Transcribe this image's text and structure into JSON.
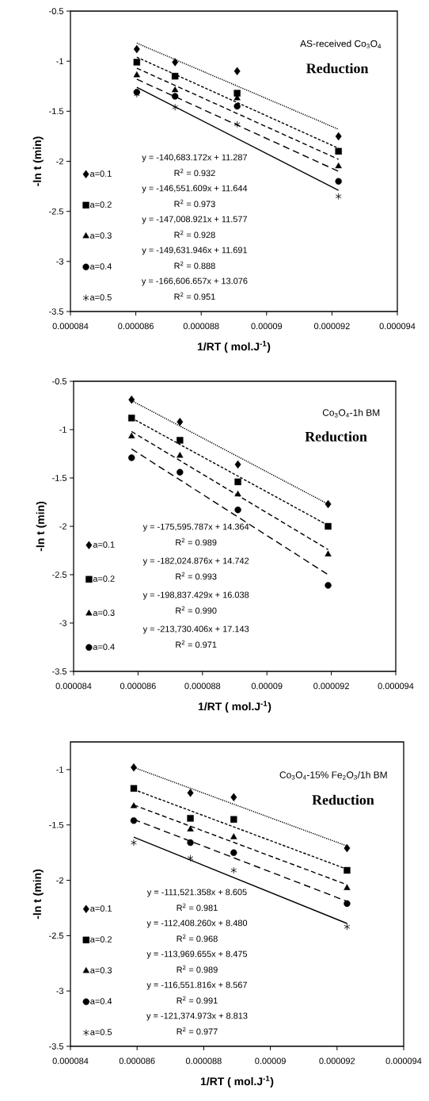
{
  "chart_data": [
    {
      "type": "scatter",
      "xlabel": "1/RT ( mol.J$^{-1}$)",
      "ylabel": "-ln t (min)",
      "xlim": [
        8.4e-05,
        9.4e-05
      ],
      "xticks": [
        {
          "value": 8.4e-05,
          "label": "0.000084"
        },
        {
          "value": 8.6e-05,
          "label": "0.000086"
        },
        {
          "value": 8.8e-05,
          "label": "0.000088"
        },
        {
          "value": 9e-05,
          "label": "0.00009"
        },
        {
          "value": 9.2e-05,
          "label": "0.000092"
        },
        {
          "value": 9.4e-05,
          "label": "0.000094"
        }
      ],
      "ylim": [
        -3.5,
        -0.5
      ],
      "yticks": [
        -0.5,
        -1,
        -1.5,
        -2,
        -2.5,
        -3,
        -3.5
      ],
      "legend": "bottom left",
      "annotations": [
        "AS-received Co$_{3}$O$_{4}$",
        "**Reduction**",
        "y = -140,683.172x + 11.287",
        "R$^{2}$ = 0.932",
        "y = -146,551.609x + 11.644",
        "R$^{2}$ = 0.973",
        "y = -147,008.921x + 11.577",
        "R$^{2}$ = 0.928",
        "y = -149,631.946x + 11.691",
        "R$^{2}$ = 0.888",
        "y = -166,606.657x + 13.076",
        "R$^{2}$ = 0.951"
      ],
      "series": [
        {
          "name": "a=0.1",
          "marker": "diamond",
          "color": "#000000",
          "x": [
            8.603e-05,
            8.72e-05,
            8.91e-05,
            9.22e-05
          ],
          "values": [
            -0.88,
            -1.01,
            -1.1,
            -1.75
          ]
        },
        {
          "name": "a=0.2",
          "marker": "square",
          "color": "#000000",
          "x": [
            8.603e-05,
            8.72e-05,
            8.91e-05,
            9.22e-05
          ],
          "values": [
            -1.01,
            -1.15,
            -1.32,
            -1.9
          ]
        },
        {
          "name": "a=0.3",
          "marker": "triangle",
          "color": "#000000",
          "x": [
            8.603e-05,
            8.72e-05,
            8.91e-05,
            9.22e-05
          ],
          "values": [
            -1.14,
            -1.29,
            -1.37,
            -2.05
          ]
        },
        {
          "name": "a=0.4",
          "marker": "circle",
          "color": "#000000",
          "x": [
            8.603e-05,
            8.72e-05,
            8.91e-05,
            9.22e-05
          ],
          "values": [
            -1.31,
            -1.35,
            -1.45,
            -2.2
          ]
        },
        {
          "name": "a=0.5",
          "marker": "cross",
          "color": "#000000",
          "x": [
            8.603e-05,
            8.72e-05,
            8.91e-05,
            9.22e-05
          ],
          "values": [
            -1.33,
            -1.46,
            -1.63,
            -2.35
          ]
        },
        {
          "type": "line",
          "marker": "none",
          "line_style": "dotted",
          "color": "#000000",
          "x": [
            8.603e-05,
            9.22e-05
          ],
          "values": [
            -0.82,
            -1.68
          ]
        },
        {
          "type": "line",
          "marker": "none",
          "line_style": "dashed",
          "color": "#000000",
          "x": [
            8.603e-05,
            9.22e-05
          ],
          "values": [
            -0.96,
            -1.87
          ]
        },
        {
          "type": "line",
          "marker": "none",
          "line_style": "dashed",
          "color": "#000000",
          "x": [
            8.603e-05,
            9.22e-05
          ],
          "values": [
            -1.07,
            -1.98
          ]
        },
        {
          "type": "line",
          "marker": "none",
          "line_style": "dashed",
          "color": "#000000",
          "x": [
            8.603e-05,
            9.22e-05
          ],
          "values": [
            -1.18,
            -2.1
          ]
        },
        {
          "type": "line",
          "marker": "none",
          "line_style": "solid",
          "color": "#000000",
          "x": [
            8.603e-05,
            9.22e-05
          ],
          "values": [
            -1.26,
            -2.29
          ]
        }
      ]
    },
    {
      "type": "scatter",
      "xlabel": "1/RT ( mol.J$^{-1}$)",
      "ylabel": "-ln t (min)",
      "xlim": [
        8.4e-05,
        9.4e-05
      ],
      "xticks": [
        {
          "value": 8.4e-05,
          "label": "0.000084"
        },
        {
          "value": 8.6e-05,
          "label": "0.000086"
        },
        {
          "value": 8.8e-05,
          "label": "0.000088"
        },
        {
          "value": 9e-05,
          "label": "0.00009"
        },
        {
          "value": 9.2e-05,
          "label": "0.000092"
        },
        {
          "value": 9.4e-05,
          "label": "0.000094"
        }
      ],
      "ylim": [
        -3.5,
        -0.5
      ],
      "yticks": [
        -0.5,
        -1,
        -1.5,
        -2,
        -2.5,
        -3,
        -3.5
      ],
      "legend": "bottom left",
      "annotations": [
        "Co$_{3}$O$_{4}$-1h BM",
        "**Reduction**",
        "y = -175,595.787x + 14.364",
        "R$^{2}$ = 0.989",
        "y = -182,024.876x + 14.742",
        "R$^{2}$ = 0.993",
        "y = -198,837.429x + 16.038",
        "R$^{2}$ = 0.990",
        "y = -213,730.406x + 17.143",
        "R$^{2}$ = 0.971"
      ],
      "series": [
        {
          "name": "a=0.1",
          "marker": "diamond",
          "color": "#000000",
          "x": [
            8.58e-05,
            8.73e-05,
            8.91e-05,
            9.19e-05
          ],
          "values": [
            -0.69,
            -0.92,
            -1.36,
            -1.77
          ]
        },
        {
          "name": "a=0.2",
          "marker": "square",
          "color": "#000000",
          "x": [
            8.58e-05,
            8.73e-05,
            8.91e-05,
            9.19e-05
          ],
          "values": [
            -0.88,
            -1.11,
            -1.54,
            -2.0
          ]
        },
        {
          "name": "a=0.3",
          "marker": "triangle",
          "color": "#000000",
          "x": [
            8.58e-05,
            8.73e-05,
            8.91e-05,
            9.19e-05
          ],
          "values": [
            -1.07,
            -1.27,
            -1.67,
            -2.29
          ]
        },
        {
          "name": "a=0.4",
          "marker": "circle",
          "color": "#000000",
          "x": [
            8.58e-05,
            8.73e-05,
            8.91e-05,
            9.19e-05
          ],
          "values": [
            -1.29,
            -1.44,
            -1.83,
            -2.61
          ]
        },
        {
          "type": "line",
          "marker": "none",
          "line_style": "dotted",
          "color": "#000000",
          "x": [
            8.58e-05,
            9.19e-05
          ],
          "values": [
            -0.7,
            -1.77
          ]
        },
        {
          "type": "line",
          "marker": "none",
          "line_style": "dashed",
          "color": "#000000",
          "x": [
            8.58e-05,
            9.19e-05
          ],
          "values": [
            -0.88,
            -1.99
          ]
        },
        {
          "type": "line",
          "marker": "none",
          "line_style": "dashed",
          "color": "#000000",
          "x": [
            8.58e-05,
            9.19e-05
          ],
          "values": [
            -1.02,
            -2.24
          ]
        },
        {
          "type": "line",
          "marker": "none",
          "line_style": "dashed",
          "color": "#000000",
          "x": [
            8.58e-05,
            9.19e-05
          ],
          "values": [
            -1.2,
            -2.5
          ]
        }
      ]
    },
    {
      "type": "scatter",
      "xlabel": "1/RT ( mol.J$^{-1}$)",
      "ylabel": "-ln t (min)",
      "xlim": [
        8.4e-05,
        9.4e-05
      ],
      "xticks": [
        {
          "value": 8.4e-05,
          "label": "0.000084"
        },
        {
          "value": 8.6e-05,
          "label": "0.000086"
        },
        {
          "value": 8.8e-05,
          "label": "0.000088"
        },
        {
          "value": 9e-05,
          "label": "0.00009"
        },
        {
          "value": 9.2e-05,
          "label": "0.000092"
        },
        {
          "value": 9.4e-05,
          "label": "0.000094"
        }
      ],
      "ylim": [
        -3.5,
        -0.75
      ],
      "yticks": [
        -1,
        -1.5,
        -2,
        -2.5,
        -3,
        -3.5
      ],
      "legend": "bottom left",
      "annotations": [
        "Co$_{3}$O$_{4}$-15% Fe$_{2}$O$_{3}$/1h BM",
        "**Reduction**",
        "y = -111,521.358x + 8.605",
        "R$^{2}$ = 0.981",
        "y = -112,408.260x + 8.480",
        "R$^{2}$ = 0.968",
        "y = -113,969.655x + 8.475",
        "R$^{2}$ = 0.989",
        "y = -116,551.816x + 8.567",
        "R$^{2}$ = 0.991",
        "y = -121,374.973x + 8.813",
        "R$^{2}$ = 0.977"
      ],
      "series": [
        {
          "name": "a=0.1",
          "marker": "diamond",
          "color": "#000000",
          "x": [
            8.59e-05,
            8.76e-05,
            8.89e-05,
            9.23e-05
          ],
          "values": [
            -0.98,
            -1.21,
            -1.25,
            -1.71
          ]
        },
        {
          "name": "a=0.2",
          "marker": "square",
          "color": "#000000",
          "x": [
            8.59e-05,
            8.76e-05,
            8.89e-05,
            9.23e-05
          ],
          "values": [
            -1.17,
            -1.44,
            -1.45,
            -1.91
          ]
        },
        {
          "name": "a=0.3",
          "marker": "triangle",
          "color": "#000000",
          "x": [
            8.59e-05,
            8.76e-05,
            8.89e-05,
            9.23e-05
          ],
          "values": [
            -1.33,
            -1.54,
            -1.61,
            -2.07
          ]
        },
        {
          "name": "a=0.4",
          "marker": "circle",
          "color": "#000000",
          "x": [
            8.59e-05,
            8.76e-05,
            8.89e-05,
            9.23e-05
          ],
          "values": [
            -1.46,
            -1.66,
            -1.75,
            -2.21
          ]
        },
        {
          "name": "a=0.5",
          "marker": "cross",
          "color": "#000000",
          "x": [
            8.59e-05,
            8.76e-05,
            8.89e-05,
            9.23e-05
          ],
          "values": [
            -1.66,
            -1.8,
            -1.91,
            -2.42
          ]
        },
        {
          "type": "line",
          "marker": "none",
          "line_style": "dotted",
          "color": "#000000",
          "x": [
            8.59e-05,
            9.23e-05
          ],
          "values": [
            -0.98,
            -1.69
          ]
        },
        {
          "type": "line",
          "marker": "none",
          "line_style": "dashed",
          "color": "#000000",
          "x": [
            8.59e-05,
            9.23e-05
          ],
          "values": [
            -1.18,
            -1.9
          ]
        },
        {
          "type": "line",
          "marker": "none",
          "line_style": "dashed",
          "color": "#000000",
          "x": [
            8.59e-05,
            9.23e-05
          ],
          "values": [
            -1.32,
            -2.04
          ]
        },
        {
          "type": "line",
          "marker": "none",
          "line_style": "dashed",
          "color": "#000000",
          "x": [
            8.59e-05,
            9.23e-05
          ],
          "values": [
            -1.45,
            -2.19
          ]
        },
        {
          "type": "line",
          "marker": "none",
          "line_style": "solid",
          "color": "#000000",
          "x": [
            8.59e-05,
            9.23e-05
          ],
          "values": [
            -1.61,
            -2.39
          ]
        }
      ]
    }
  ]
}
